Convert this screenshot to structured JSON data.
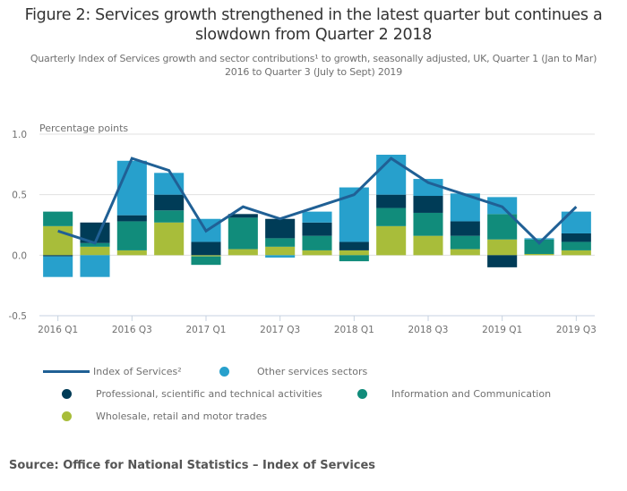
{
  "header": {
    "title": "Figure 2: Services growth strengthened in the latest quarter but continues a slowdown from Quarter 2 2018",
    "subtitle": "Quarterly Index of Services growth and sector contributions¹ to growth, seasonally adjusted, UK, Quarter 1 (Jan to Mar) 2016 to Quarter 3 (July to Sept) 2019"
  },
  "source": "Source: Office for National Statistics – Index of Services",
  "chart_data": {
    "type": "bar",
    "stacked": true,
    "title": "Figure 2: Services growth strengthened in the latest quarter but continues a slowdown from Quarter 2 2018",
    "ylabel": "Percentage points",
    "xlabel": "",
    "ylim": [
      -0.5,
      1.0
    ],
    "yticks": [
      "1.0",
      "0.5",
      "0.0",
      "-0.5"
    ],
    "ytick_values": [
      1.0,
      0.5,
      0.0,
      -0.5
    ],
    "grid": true,
    "legend_position": "bottom",
    "categories": [
      "2016 Q1",
      "2016 Q2",
      "2016 Q3",
      "2016 Q4",
      "2017 Q1",
      "2017 Q2",
      "2017 Q3",
      "2017 Q4",
      "2018 Q1",
      "2018 Q2",
      "2018 Q3",
      "2018 Q4",
      "2019 Q1",
      "2019 Q2",
      "2019 Q3"
    ],
    "xtick_labels": [
      "2016 Q1",
      "2016 Q3",
      "2017 Q1",
      "2017 Q3",
      "2018 Q1",
      "2018 Q3",
      "2019 Q1",
      "2019 Q3"
    ],
    "series": [
      {
        "name": "Wholesale, retail and motor trades",
        "color": "#a8bd3a",
        "values": [
          0.24,
          0.07,
          0.04,
          0.27,
          -0.01,
          0.05,
          0.07,
          0.04,
          0.04,
          0.24,
          0.16,
          0.05,
          0.13,
          0.01,
          0.04
        ]
      },
      {
        "name": "Information and Communication",
        "color": "#118c7b",
        "values": [
          0.12,
          0.03,
          0.24,
          0.1,
          -0.07,
          0.26,
          0.07,
          0.12,
          -0.05,
          0.15,
          0.19,
          0.11,
          0.21,
          0.12,
          0.07
        ]
      },
      {
        "name": "Professional, scientific and technical activities",
        "color": "#003c57",
        "values": [
          -0.01,
          0.17,
          0.05,
          0.13,
          0.11,
          0.03,
          0.16,
          0.11,
          0.07,
          0.11,
          0.14,
          0.12,
          -0.1,
          0.0,
          0.07
        ]
      },
      {
        "name": "Other services sectors",
        "color": "#27a0cc",
        "values": [
          -0.17,
          -0.18,
          0.45,
          0.18,
          0.19,
          0.0,
          -0.02,
          0.09,
          0.45,
          0.33,
          0.14,
          0.23,
          0.14,
          0.01,
          0.18
        ]
      }
    ],
    "line": {
      "name": "Index of Services²",
      "color": "#206095",
      "values": [
        0.2,
        0.1,
        0.8,
        0.7,
        0.2,
        0.4,
        0.3,
        0.4,
        0.5,
        0.8,
        0.6,
        0.5,
        0.4,
        0.1,
        0.4
      ]
    }
  },
  "legend": [
    {
      "label": "Index of Services²",
      "kind": "line",
      "color": "#206095"
    },
    {
      "label": "Other services sectors",
      "kind": "dot",
      "color": "#27a0cc"
    },
    {
      "label": "Professional, scientific and technical activities",
      "kind": "dot",
      "color": "#003c57"
    },
    {
      "label": "Information and Communication",
      "kind": "dot",
      "color": "#118c7b"
    },
    {
      "label": "Wholesale, retail and motor trades",
      "kind": "dot",
      "color": "#a8bd3a"
    }
  ]
}
